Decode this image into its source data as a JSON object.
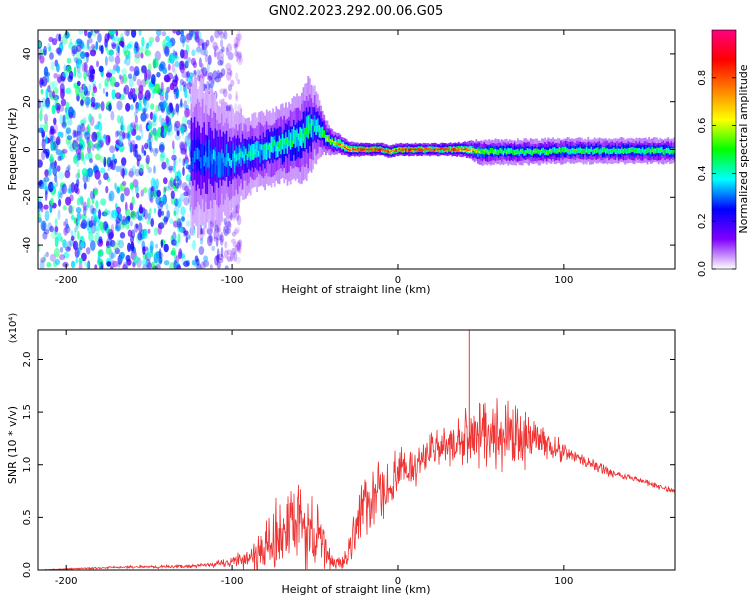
{
  "figure_title": "GN02.2023.292.00.06.G05",
  "chart_data": [
    {
      "type": "heatmap",
      "title": "",
      "xlabel": "Height of straight line (km)",
      "ylabel": "Frequency (Hz)",
      "xlim": [
        -217,
        167
      ],
      "ylim": [
        -50,
        50
      ],
      "xticks": [
        -200,
        -100,
        0,
        100
      ],
      "yticks": [
        -40,
        -20,
        0,
        20,
        40
      ],
      "xtick_labels": [
        "-200",
        "-100",
        "0",
        "100"
      ],
      "ytick_labels": [
        "-40",
        "-20",
        "0",
        "20",
        "40"
      ],
      "grid": false,
      "colorbar": {
        "label": "Normalized spectral amplitude",
        "range": [
          0,
          1
        ],
        "ticks": [
          0.0,
          0.2,
          0.4,
          0.6,
          0.8
        ],
        "tick_labels": [
          "0.0",
          "0.2",
          "0.4",
          "0.6",
          "0.8"
        ],
        "colors": [
          "#ffffff",
          "#8000ff",
          "#0000ff",
          "#00ffff",
          "#00ff00",
          "#ffff00",
          "#ff8000",
          "#ff0000",
          "#ff0080"
        ]
      },
      "ridge": {
        "x": [
          -120,
          -110,
          -100,
          -90,
          -80,
          -70,
          -60,
          -55,
          -50,
          -45,
          -40,
          -35,
          -30,
          -20,
          -10,
          -5,
          0,
          10,
          20,
          30,
          40,
          50,
          60,
          70,
          80,
          100,
          120,
          140,
          167
        ],
        "y": [
          -3,
          -4,
          -4,
          -2,
          0,
          2,
          5,
          8,
          10,
          6,
          3,
          2,
          0,
          0,
          0,
          -1,
          0,
          0,
          0,
          0,
          0,
          -1,
          -1,
          -1,
          -1,
          -0.5,
          -0.5,
          -0.5,
          -0.5
        ],
        "amplitude": [
          0.3,
          0.35,
          0.35,
          0.4,
          0.4,
          0.45,
          0.45,
          0.45,
          0.4,
          0.55,
          0.6,
          0.75,
          0.85,
          0.9,
          0.9,
          0.85,
          0.9,
          0.9,
          0.9,
          0.9,
          0.85,
          0.55,
          0.5,
          0.5,
          0.5,
          0.5,
          0.5,
          0.5,
          0.5
        ],
        "spread_hz": [
          12,
          10,
          8,
          6,
          6,
          6,
          7,
          8,
          6,
          3,
          2,
          1.5,
          1.2,
          1,
          1,
          1,
          1,
          1,
          1,
          1,
          1.2,
          2,
          2,
          2,
          2,
          2,
          2,
          2,
          2
        ]
      },
      "noise_region": {
        "x_range": [
          -217,
          -110
        ],
        "amplitude": 0.35
      }
    },
    {
      "type": "line",
      "title": "",
      "xlabel": "Height of straight line (km)",
      "ylabel": "SNR (10 * v/v)",
      "y_scale_label": "(x10⁴)",
      "xlim": [
        -217,
        167
      ],
      "ylim": [
        0,
        2.28
      ],
      "xticks": [
        -200,
        -100,
        0,
        100
      ],
      "yticks": [
        0.0,
        0.5,
        1.0,
        1.5,
        2.0
      ],
      "xtick_labels": [
        "-200",
        "-100",
        "0",
        "100"
      ],
      "ytick_labels": [
        "0.0",
        "0.5",
        "1.0",
        "1.5",
        "2.0"
      ],
      "grid": false,
      "series": [
        {
          "color": "#ee3333",
          "x": [
            -217,
            -200,
            -180,
            -160,
            -140,
            -120,
            -110,
            -100,
            -90,
            -80,
            -75,
            -70,
            -65,
            -60,
            -55,
            -50,
            -45,
            -40,
            -35,
            -30,
            -25,
            -20,
            -15,
            -10,
            -5,
            0,
            10,
            20,
            30,
            40,
            45,
            50,
            60,
            70,
            80,
            90,
            100,
            110,
            120,
            130,
            140,
            150,
            160,
            167
          ],
          "y": [
            0.0,
            0.01,
            0.02,
            0.03,
            0.03,
            0.04,
            0.05,
            0.08,
            0.12,
            0.2,
            0.28,
            0.35,
            0.38,
            0.42,
            0.38,
            0.32,
            0.22,
            0.08,
            0.06,
            0.12,
            0.5,
            0.6,
            0.65,
            0.72,
            0.8,
            0.9,
            1.0,
            1.12,
            1.18,
            1.22,
            1.28,
            1.32,
            1.3,
            1.28,
            1.25,
            1.2,
            1.12,
            1.05,
            0.98,
            0.92,
            0.88,
            0.83,
            0.78,
            0.75
          ],
          "noise": [
            0.002,
            0.005,
            0.01,
            0.012,
            0.015,
            0.02,
            0.03,
            0.06,
            0.12,
            0.25,
            0.35,
            0.4,
            0.45,
            0.45,
            0.4,
            0.35,
            0.25,
            0.1,
            0.08,
            0.12,
            0.35,
            0.3,
            0.3,
            0.3,
            0.25,
            0.25,
            0.2,
            0.2,
            0.2,
            0.25,
            0.35,
            0.35,
            0.35,
            0.3,
            0.25,
            0.15,
            0.1,
            0.07,
            0.05,
            0.04,
            0.03,
            0.03,
            0.03,
            0.03
          ]
        }
      ],
      "annotations": [
        {
          "type": "spike",
          "x": 43,
          "y": 2.28
        }
      ]
    }
  ]
}
